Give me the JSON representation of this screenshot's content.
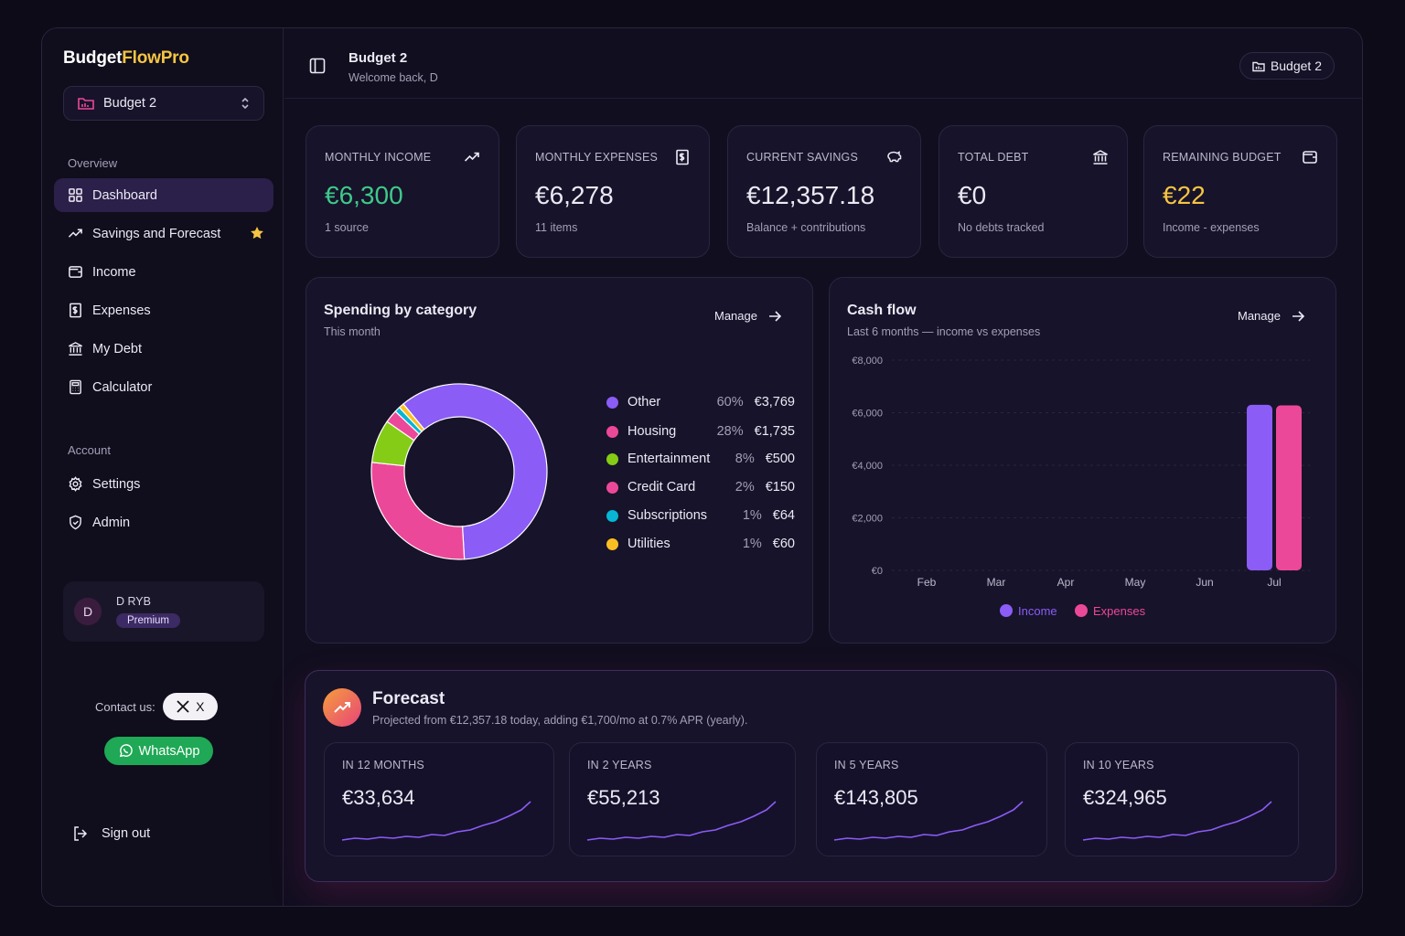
{
  "brand": {
    "part1": "Budget",
    "part2": "FlowPro"
  },
  "sidebar": {
    "budget_select": "Budget 2",
    "overview_label": "Overview",
    "nav": [
      {
        "label": "Dashboard",
        "icon": "grid-icon"
      },
      {
        "label": "Savings and Forecast",
        "icon": "trend-icon"
      },
      {
        "label": "Income",
        "icon": "wallet-icon"
      },
      {
        "label": "Expenses",
        "icon": "receipt-icon"
      },
      {
        "label": "My Debt",
        "icon": "bank-icon"
      },
      {
        "label": "Calculator",
        "icon": "calculator-icon"
      }
    ],
    "account_label": "Account",
    "account_nav": [
      {
        "label": "Settings",
        "icon": "gear-icon"
      },
      {
        "label": "Admin",
        "icon": "shield-icon"
      }
    ],
    "user": {
      "initial": "D",
      "name": "D RYB",
      "badge": "Premium"
    },
    "contact_label": "Contact us:",
    "x_label": "X",
    "whatsapp_label": "WhatsApp",
    "signout_label": "Sign out"
  },
  "header": {
    "title": "Budget 2",
    "subtitle": "Welcome back, D",
    "budget_pill": "Budget 2"
  },
  "stats": [
    {
      "label": "MONTHLY INCOME",
      "value": "€6,300",
      "sub": "1 source",
      "color": "#3ec98a"
    },
    {
      "label": "MONTHLY EXPENSES",
      "value": "€6,278",
      "sub": "11 items",
      "color": "#ece9f5"
    },
    {
      "label": "CURRENT SAVINGS",
      "value": "€12,357.18",
      "sub": "Balance + contributions",
      "color": "#ece9f5"
    },
    {
      "label": "TOTAL DEBT",
      "value": "€0",
      "sub": "No debts tracked",
      "color": "#ece9f5"
    },
    {
      "label": "REMAINING BUDGET",
      "value": "€22",
      "sub": "Income - expenses",
      "color": "#f5c542"
    }
  ],
  "spending": {
    "title": "Spending by category",
    "subtitle": "This month",
    "manage_label": "Manage",
    "categories": [
      {
        "name": "Other",
        "pct": "60%",
        "amount": "€3,769",
        "value": 3769,
        "color": "#8b5cf6"
      },
      {
        "name": "Housing",
        "pct": "28%",
        "amount": "€1,735",
        "value": 1735,
        "color": "#ec4899"
      },
      {
        "name": "Entertainment",
        "pct": "8%",
        "amount": "€500",
        "value": 500,
        "color": "#84cc16"
      },
      {
        "name": "Credit Card",
        "pct": "2%",
        "amount": "€150",
        "value": 150,
        "color": "#ec4899"
      },
      {
        "name": "Subscriptions",
        "pct": "1%",
        "amount": "€64",
        "value": 64,
        "color": "#06b6d4"
      },
      {
        "name": "Utilities",
        "pct": "1%",
        "amount": "€60",
        "value": 60,
        "color": "#fbbf24"
      }
    ]
  },
  "cashflow": {
    "title": "Cash flow",
    "subtitle": "Last 6 months — income vs expenses",
    "manage_label": "Manage",
    "legend_income": "Income",
    "legend_expenses": "Expenses",
    "income_color": "#8b5cf6",
    "expenses_color": "#ec4899"
  },
  "chart_data": {
    "type": "bar",
    "categories": [
      "Feb",
      "Mar",
      "Apr",
      "May",
      "Jun",
      "Jul"
    ],
    "series": [
      {
        "name": "Income",
        "values": [
          0,
          0,
          0,
          0,
          0,
          6300
        ]
      },
      {
        "name": "Expenses",
        "values": [
          0,
          0,
          0,
          0,
          0,
          6278
        ]
      }
    ],
    "ylim": [
      0,
      8000
    ],
    "yticks": [
      "€0",
      "€2,000",
      "€4,000",
      "€6,000",
      "€8,000"
    ],
    "ytick_values": [
      0,
      2000,
      4000,
      6000,
      8000
    ],
    "grid": true,
    "legend": "bottom"
  },
  "forecast": {
    "title": "Forecast",
    "subtitle": "Projected from €12,357.18 today, adding €1,700/mo at 0.7% APR (yearly).",
    "cards": [
      {
        "label": "IN 12 MONTHS",
        "value": "€33,634"
      },
      {
        "label": "IN 2 YEARS",
        "value": "€55,213"
      },
      {
        "label": "IN 5 YEARS",
        "value": "€143,805"
      },
      {
        "label": "IN 10 YEARS",
        "value": "€324,965"
      }
    ]
  }
}
